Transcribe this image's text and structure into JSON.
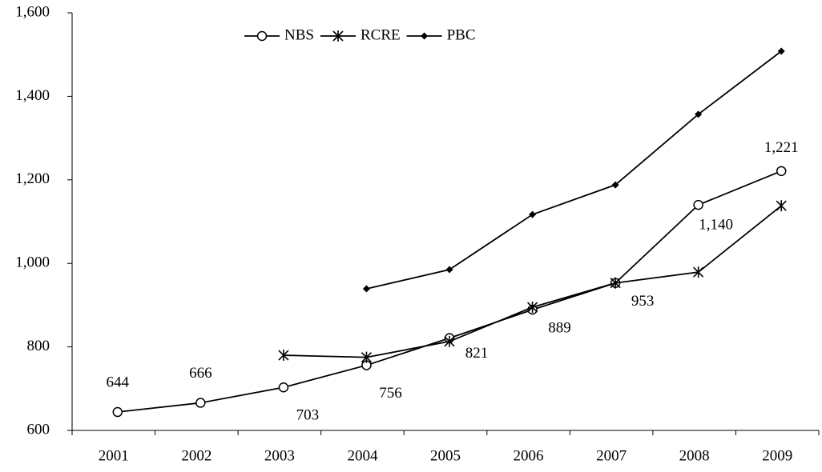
{
  "chart_data": {
    "type": "line",
    "categories": [
      "2001",
      "2002",
      "2003",
      "2004",
      "2005",
      "2006",
      "2007",
      "2008",
      "2009"
    ],
    "series": [
      {
        "name": "NBS",
        "color": "#000000",
        "marker": "circle",
        "values": [
          644,
          666,
          703,
          756,
          821,
          889,
          953,
          1140,
          1221
        ],
        "value_labels": [
          "644",
          "666",
          "703",
          "756",
          "821",
          "889",
          "953",
          "1,140",
          "1,221"
        ]
      },
      {
        "name": "RCRE",
        "color": "#000000",
        "marker": "asterisk",
        "values": [
          null,
          null,
          780,
          775,
          813,
          895,
          953,
          979,
          1138
        ]
      },
      {
        "name": "PBC",
        "color": "#000000",
        "marker": "diamond",
        "values": [
          null,
          null,
          null,
          939,
          985,
          1117,
          1188,
          1357,
          1508
        ]
      }
    ],
    "ylim": [
      600,
      1600
    ],
    "yticks": [
      600,
      800,
      {
        "value": 1000,
        "label": "1,000"
      },
      {
        "value": 1200,
        "label": "1,200"
      },
      {
        "value": 1400,
        "label": "1,400"
      },
      {
        "value": 1600,
        "label": "1,600"
      }
    ],
    "legend": "top",
    "grid": false
  }
}
